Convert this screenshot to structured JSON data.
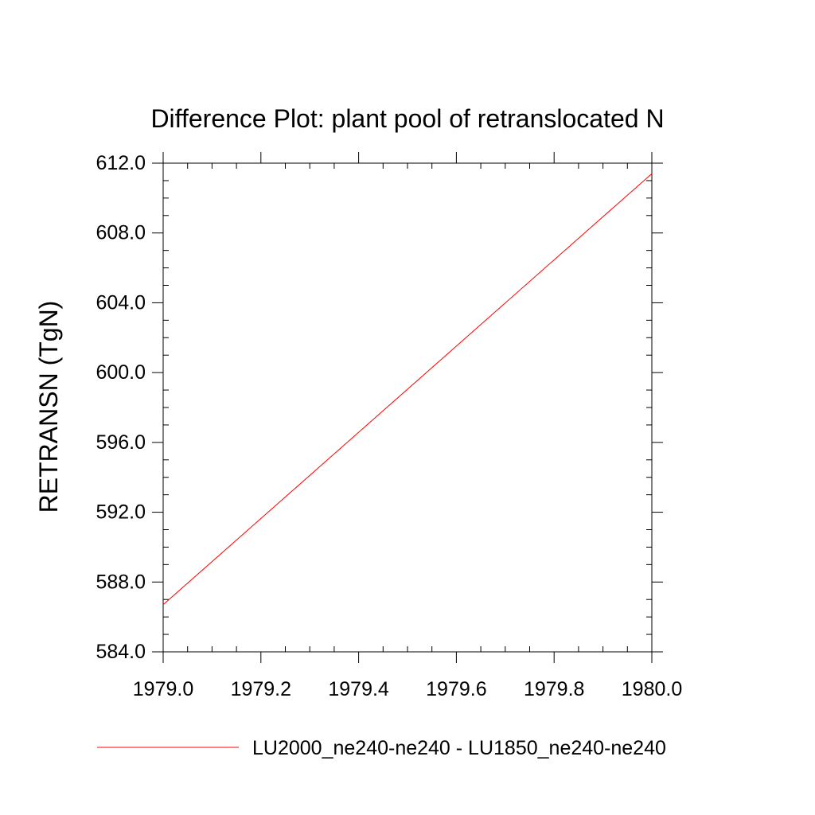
{
  "chart_data": {
    "type": "line",
    "title": "Difference Plot: plant pool of retranslocated N",
    "xlabel": "",
    "ylabel": "RETRANSN  (TgN)",
    "xlim": [
      1979.0,
      1980.0
    ],
    "ylim": [
      584.0,
      612.0
    ],
    "x_ticks": [
      "1979.0",
      "1979.2",
      "1979.4",
      "1979.6",
      "1979.8",
      "1980.0"
    ],
    "y_ticks": [
      "584.0",
      "588.0",
      "592.0",
      "596.0",
      "600.0",
      "604.0",
      "608.0",
      "612.0"
    ],
    "grid": false,
    "legend_position": "bottom",
    "series": [
      {
        "name": "LU2000_ne240-ne240 - LU1850_ne240-ne240",
        "color": "#ff0000",
        "x": [
          1979.0,
          1980.0
        ],
        "y": [
          586.7,
          611.4
        ]
      }
    ]
  }
}
